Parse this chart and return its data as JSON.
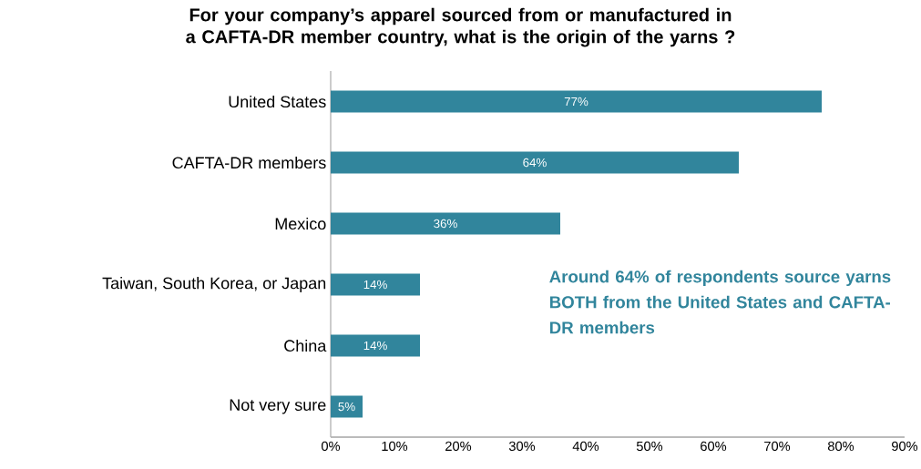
{
  "chart_data": {
    "type": "bar",
    "orientation": "horizontal",
    "title": "For your company’s apparel sourced from or manufactured in a CAFTA-DR member country, what is the origin of the yarns ?",
    "categories": [
      "United States",
      "CAFTA-DR members",
      "Mexico",
      "Taiwan, South Korea, or Japan",
      "China",
      "Not very sure"
    ],
    "values": [
      77,
      64,
      36,
      14,
      14,
      5
    ],
    "value_labels": [
      "77%",
      "64%",
      "36%",
      "14%",
      "14%",
      "5%"
    ],
    "color": "#31859c",
    "xlim": [
      0,
      90
    ],
    "xticks": [
      {
        "value": 0,
        "label": "0%"
      },
      {
        "value": 10,
        "label": "10%"
      },
      {
        "value": 20,
        "label": "20%"
      },
      {
        "value": 30,
        "label": "30%"
      },
      {
        "value": 40,
        "label": "40%"
      },
      {
        "value": 50,
        "label": "50%"
      },
      {
        "value": 60,
        "label": "60%"
      },
      {
        "value": 70,
        "label": "70%"
      },
      {
        "value": 80,
        "label": "80%"
      },
      {
        "value": 90,
        "label": "90%"
      }
    ],
    "annotations": [
      "Around **64%** of respondents source yarns BOTH from the United States and CAFTA-DR members"
    ],
    "grid": false
  }
}
